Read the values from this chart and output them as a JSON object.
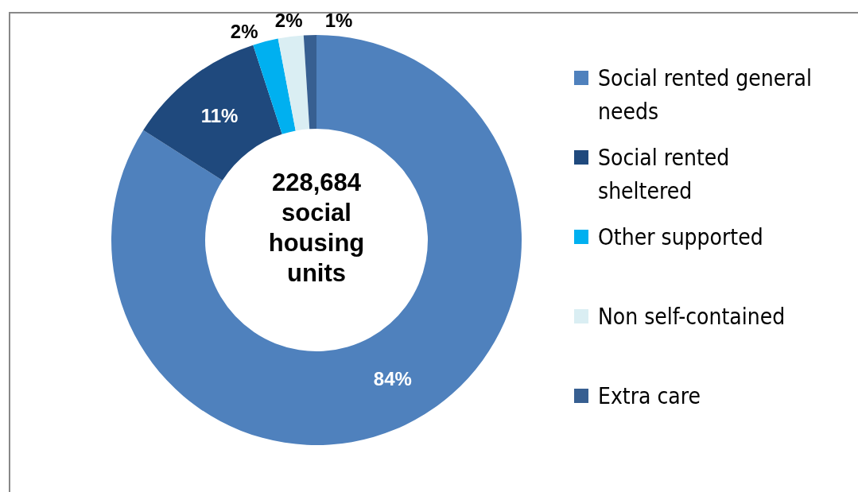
{
  "chart_data": {
    "type": "donut",
    "categories": [
      "Social rented general needs",
      "Social rented sheltered",
      "Other supported",
      "Non self-contained",
      "Extra care"
    ],
    "values": [
      84,
      11,
      2,
      2,
      1
    ],
    "colors": [
      "#4f81bd",
      "#1f497d",
      "#00b0f0",
      "#daeef3",
      "#375f91"
    ],
    "value_labels": [
      "84%",
      "11%",
      "2%",
      "2%",
      "1%"
    ],
    "legend": "right",
    "annotations": [
      "228,684 social housing units"
    ]
  }
}
